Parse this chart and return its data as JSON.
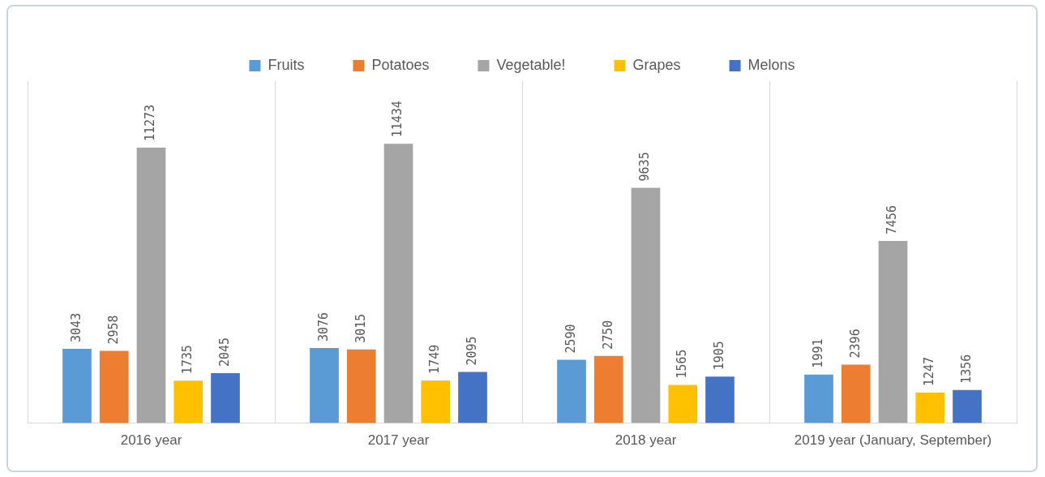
{
  "chart_data": {
    "type": "bar",
    "categories": [
      "2016 year",
      "2017 year",
      "2018 year",
      "2019 year (January, September)"
    ],
    "series": [
      {
        "name": "Fruits",
        "color": "#5b9bd5",
        "values": [
          3043,
          3076,
          2590,
          1991
        ]
      },
      {
        "name": "Potatoes",
        "color": "#ed7d31",
        "values": [
          2958,
          3015,
          2750,
          2396
        ]
      },
      {
        "name": "Vegetable!",
        "color": "#a5a5a5",
        "values": [
          11273,
          11434,
          9635,
          7456
        ]
      },
      {
        "name": "Grapes",
        "color": "#ffc000",
        "values": [
          1735,
          1749,
          1565,
          1247
        ]
      },
      {
        "name": "Melons",
        "color": "#4472c4",
        "values": [
          2045,
          2095,
          1905,
          1356
        ]
      }
    ],
    "data_labels": true,
    "grid": "x",
    "legend": "top"
  }
}
